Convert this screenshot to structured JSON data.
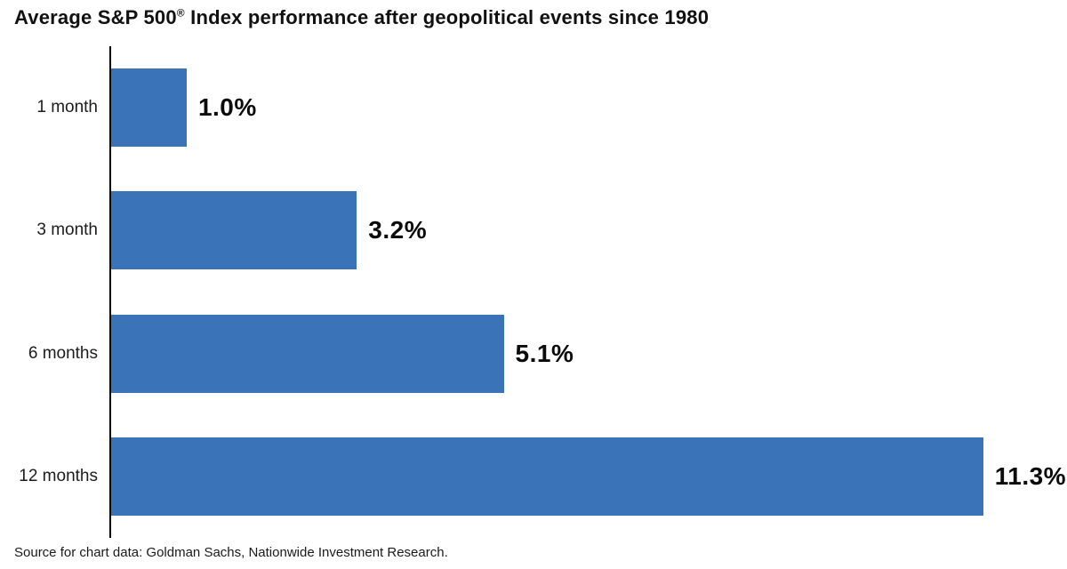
{
  "title": {
    "pre": "Average S&P 500",
    "reg_mark": "®",
    "post": " Index performance after geopolitical events since 1980"
  },
  "source": "Source for chart data: Goldman Sachs, Nationwide Investment Research.",
  "colors": {
    "bar": "#3a73b8",
    "axis": "#000000",
    "title_text": "#111111",
    "label_text": "#1c1c1c"
  },
  "chart_data": {
    "type": "bar",
    "orientation": "horizontal",
    "title": "Average S&P 500® Index performance after geopolitical events since 1980",
    "categories": [
      "1 month",
      "3 month",
      "6 months",
      "12 months"
    ],
    "values": [
      1.0,
      3.2,
      5.1,
      11.3
    ],
    "value_labels": [
      "1.0%",
      "3.2%",
      "5.1%",
      "11.3%"
    ],
    "xlabel": "",
    "ylabel": "",
    "xlim": [
      0,
      12.2
    ],
    "grid": false,
    "legend": false,
    "annotation": "Source for chart data: Goldman Sachs, Nationwide Investment Research."
  }
}
